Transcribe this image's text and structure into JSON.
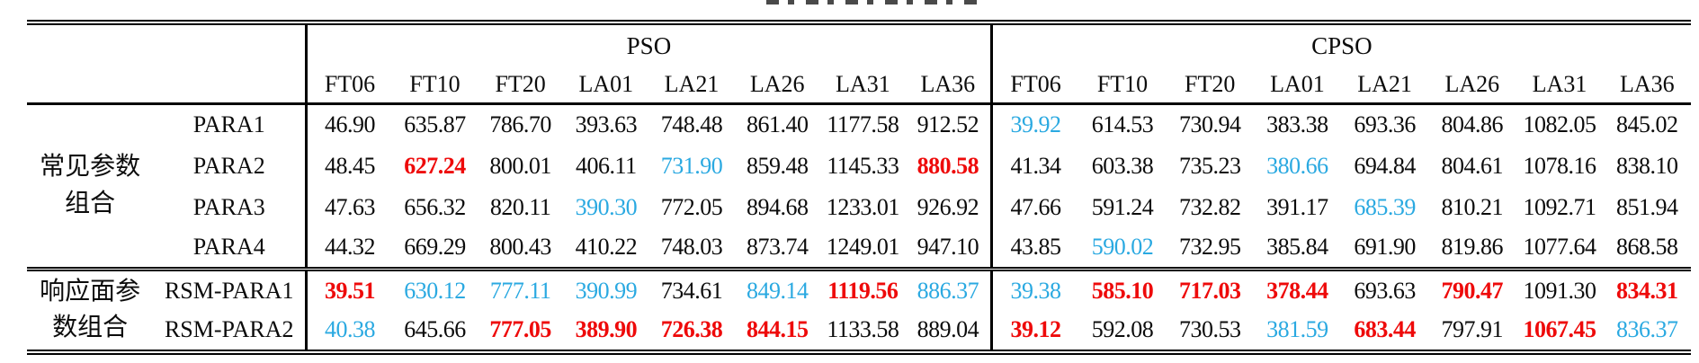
{
  "colors": {
    "black": "#0c0c0c",
    "red_highlight": "#ee0a0a",
    "blue_highlight": "#2aa9e1"
  },
  "table": {
    "groups": [
      {
        "label": "PSO"
      },
      {
        "label": "CPSO"
      }
    ],
    "instances": [
      "FT06",
      "FT10",
      "FT20",
      "LA01",
      "LA21",
      "LA26",
      "LA31",
      "LA36"
    ],
    "row_groups": [
      {
        "label_lines": [
          "常见参数",
          "组合"
        ],
        "rows": [
          {
            "param": "PARA1",
            "pso": [
              [
                "46.90",
                "k"
              ],
              [
                "635.87",
                "k"
              ],
              [
                "786.70",
                "k"
              ],
              [
                "393.63",
                "k"
              ],
              [
                "748.48",
                "k"
              ],
              [
                "861.40",
                "k"
              ],
              [
                "1177.58",
                "k"
              ],
              [
                "912.52",
                "k"
              ]
            ],
            "cpso": [
              [
                "39.92",
                "b"
              ],
              [
                "614.53",
                "k"
              ],
              [
                "730.94",
                "k"
              ],
              [
                "383.38",
                "k"
              ],
              [
                "693.36",
                "k"
              ],
              [
                "804.86",
                "k"
              ],
              [
                "1082.05",
                "k"
              ],
              [
                "845.02",
                "k"
              ]
            ]
          },
          {
            "param": "PARA2",
            "pso": [
              [
                "48.45",
                "k"
              ],
              [
                "627.24",
                "r"
              ],
              [
                "800.01",
                "k"
              ],
              [
                "406.11",
                "k"
              ],
              [
                "731.90",
                "b"
              ],
              [
                "859.48",
                "k"
              ],
              [
                "1145.33",
                "k"
              ],
              [
                "880.58",
                "r"
              ]
            ],
            "cpso": [
              [
                "41.34",
                "k"
              ],
              [
                "603.38",
                "k"
              ],
              [
                "735.23",
                "k"
              ],
              [
                "380.66",
                "b"
              ],
              [
                "694.84",
                "k"
              ],
              [
                "804.61",
                "k"
              ],
              [
                "1078.16",
                "k"
              ],
              [
                "838.10",
                "k"
              ]
            ]
          },
          {
            "param": "PARA3",
            "pso": [
              [
                "47.63",
                "k"
              ],
              [
                "656.32",
                "k"
              ],
              [
                "820.11",
                "k"
              ],
              [
                "390.30",
                "b"
              ],
              [
                "772.05",
                "k"
              ],
              [
                "894.68",
                "k"
              ],
              [
                "1233.01",
                "k"
              ],
              [
                "926.92",
                "k"
              ]
            ],
            "cpso": [
              [
                "47.66",
                "k"
              ],
              [
                "591.24",
                "k"
              ],
              [
                "732.82",
                "k"
              ],
              [
                "391.17",
                "k"
              ],
              [
                "685.39",
                "b"
              ],
              [
                "810.21",
                "k"
              ],
              [
                "1092.71",
                "k"
              ],
              [
                "851.94",
                "k"
              ]
            ]
          },
          {
            "param": "PARA4",
            "pso": [
              [
                "44.32",
                "k"
              ],
              [
                "669.29",
                "k"
              ],
              [
                "800.43",
                "k"
              ],
              [
                "410.22",
                "k"
              ],
              [
                "748.03",
                "k"
              ],
              [
                "873.74",
                "k"
              ],
              [
                "1249.01",
                "k"
              ],
              [
                "947.10",
                "k"
              ]
            ],
            "cpso": [
              [
                "43.85",
                "k"
              ],
              [
                "590.02",
                "b"
              ],
              [
                "732.95",
                "k"
              ],
              [
                "385.84",
                "k"
              ],
              [
                "691.90",
                "k"
              ],
              [
                "819.86",
                "k"
              ],
              [
                "1077.64",
                "k"
              ],
              [
                "868.58",
                "k"
              ]
            ]
          }
        ]
      },
      {
        "label_lines": [
          "响应面参",
          "数组合"
        ],
        "rows": [
          {
            "param": "RSM-PARA1",
            "pso": [
              [
                "39.51",
                "r"
              ],
              [
                "630.12",
                "b"
              ],
              [
                "777.11",
                "b"
              ],
              [
                "390.99",
                "b"
              ],
              [
                "734.61",
                "k"
              ],
              [
                "849.14",
                "b"
              ],
              [
                "1119.56",
                "r"
              ],
              [
                "886.37",
                "b"
              ]
            ],
            "cpso": [
              [
                "39.38",
                "b"
              ],
              [
                "585.10",
                "r"
              ],
              [
                "717.03",
                "r"
              ],
              [
                "378.44",
                "r"
              ],
              [
                "693.63",
                "k"
              ],
              [
                "790.47",
                "r"
              ],
              [
                "1091.30",
                "k"
              ],
              [
                "834.31",
                "r"
              ]
            ]
          },
          {
            "param": "RSM-PARA2",
            "pso": [
              [
                "40.38",
                "b"
              ],
              [
                "645.66",
                "k"
              ],
              [
                "777.05",
                "r"
              ],
              [
                "389.90",
                "r"
              ],
              [
                "726.38",
                "r"
              ],
              [
                "844.15",
                "r"
              ],
              [
                "1133.58",
                "k"
              ],
              [
                "889.04",
                "k"
              ]
            ],
            "cpso": [
              [
                "39.12",
                "r"
              ],
              [
                "592.08",
                "k"
              ],
              [
                "730.53",
                "k"
              ],
              [
                "381.59",
                "b"
              ],
              [
                "683.44",
                "r"
              ],
              [
                "797.91",
                "k"
              ],
              [
                "1067.45",
                "r"
              ],
              [
                "836.37",
                "b"
              ]
            ]
          }
        ]
      }
    ]
  }
}
